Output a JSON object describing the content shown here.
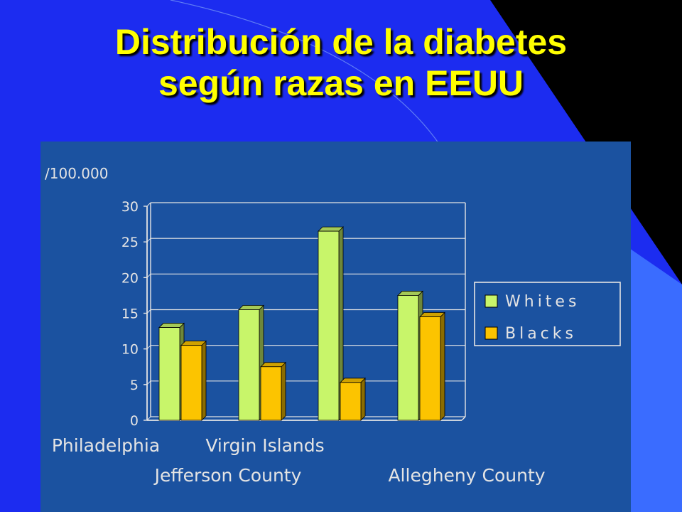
{
  "slide": {
    "title_line1": "Distribución de la diabetes",
    "title_line2": "según razas en EEUU"
  },
  "colors": {
    "slide_background": "#1c2cf0",
    "title": "#ffff00",
    "panel": "#1b52a0",
    "whites": "#c8f56a",
    "blacks": "#fcc400"
  },
  "chart_data": {
    "type": "bar",
    "ylabel": "/100.000",
    "ylim": [
      0,
      30
    ],
    "yticks": [
      0,
      5,
      10,
      15,
      20,
      25,
      30
    ],
    "grid": true,
    "legend_position": "right",
    "categories": [
      "Philadelphia",
      "Jefferson County",
      "Virgin Islands",
      "Allegheny County"
    ],
    "series": [
      {
        "name": "Whites",
        "values": [
          13,
          15.5,
          26.5,
          17.5
        ]
      },
      {
        "name": "Blacks",
        "values": [
          10.5,
          7.5,
          5.3,
          14.5
        ]
      }
    ]
  }
}
